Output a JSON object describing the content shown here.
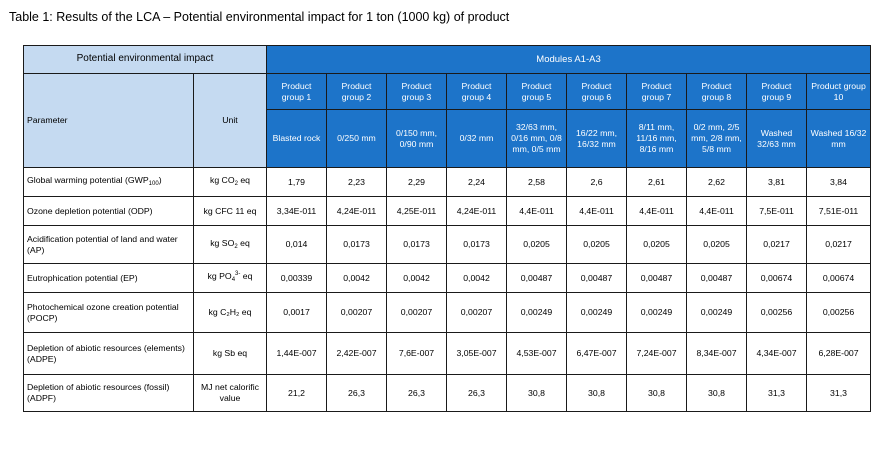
{
  "caption": "Table 1: Results of the LCA – Potential environmental impact for 1 ton (1000 kg) of product",
  "header": {
    "impact_title": "Potential environmental impact",
    "modules_title": "Modules A1-A3",
    "parameter_label": "Parameter",
    "unit_label": "Unit"
  },
  "groups": [
    {
      "name": "Product group 1",
      "size": "Blasted rock"
    },
    {
      "name": "Product group 2",
      "size": "0/250 mm"
    },
    {
      "name": "Product group 3",
      "size": "0/150 mm, 0/90 mm"
    },
    {
      "name": "Product group 4",
      "size": "0/32 mm"
    },
    {
      "name": "Product group 5",
      "size": "32/63 mm, 0/16 mm, 0/8 mm, 0/5 mm"
    },
    {
      "name": "Product group 6",
      "size": "16/22 mm, 16/32 mm"
    },
    {
      "name": "Product group 7",
      "size": "8/11 mm, 11/16 mm, 8/16 mm"
    },
    {
      "name": "Product group 8",
      "size": "0/2 mm, 2/5 mm, 2/8 mm, 5/8 mm"
    },
    {
      "name": "Product group 9",
      "size": "Washed 32/63 mm"
    },
    {
      "name": "Product group 10",
      "size": "Washed 16/32 mm"
    }
  ],
  "rows": [
    {
      "param_pre": "Global warming potential (GWP",
      "param_sub": "100",
      "param_post": ")",
      "unit_pre": "kg CO",
      "unit_sub": "2",
      "unit_sup": "",
      "unit_post": " eq",
      "values": [
        "1,79",
        "2,23",
        "2,29",
        "2,24",
        "2,58",
        "2,6",
        "2,61",
        "2,62",
        "3,81",
        "3,84"
      ]
    },
    {
      "param_pre": "Ozone depletion potential (ODP)",
      "param_sub": "",
      "param_post": "",
      "unit_pre": "kg CFC 11 eq",
      "unit_sub": "",
      "unit_sup": "",
      "unit_post": "",
      "values": [
        "3,34E-011",
        "4,24E-011",
        "4,25E-011",
        "4,24E-011",
        "4,4E-011",
        "4,4E-011",
        "4,4E-011",
        "4,4E-011",
        "7,5E-011",
        "7,51E-011"
      ]
    },
    {
      "param_pre": "Acidification potential of land and water (AP)",
      "param_sub": "",
      "param_post": "",
      "unit_pre": "kg SO",
      "unit_sub": "2",
      "unit_sup": "",
      "unit_post": " eq",
      "values": [
        "0,014",
        "0,0173",
        "0,0173",
        "0,0173",
        "0,0205",
        "0,0205",
        "0,0205",
        "0,0205",
        "0,0217",
        "0,0217"
      ]
    },
    {
      "param_pre": "Eutrophication potential (EP)",
      "param_sub": "",
      "param_post": "",
      "unit_pre": "kg PO",
      "unit_sub": "4",
      "unit_sup": "3-",
      "unit_post": " eq",
      "values": [
        "0,00339",
        "0,0042",
        "0,0042",
        "0,0042",
        "0,00487",
        "0,00487",
        "0,00487",
        "0,00487",
        "0,00674",
        "0,00674"
      ]
    },
    {
      "param_pre": "Photochemical ozone creation potential (POCP)",
      "param_sub": "",
      "param_post": "",
      "unit_pre": "kg C₂H₂ eq",
      "unit_sub": "",
      "unit_sup": "",
      "unit_post": "",
      "values": [
        "0,0017",
        "0,00207",
        "0,00207",
        "0,00207",
        "0,00249",
        "0,00249",
        "0,00249",
        "0,00249",
        "0,00256",
        "0,00256"
      ]
    },
    {
      "param_pre": "Depletion of abiotic resources (elements) (ADPE)",
      "param_sub": "",
      "param_post": "",
      "unit_pre": "kg Sb eq",
      "unit_sub": "",
      "unit_sup": "",
      "unit_post": "",
      "values": [
        "1,44E-007",
        "2,42E-007",
        "7,6E-007",
        "3,05E-007",
        "4,53E-007",
        "6,47E-007",
        "7,24E-007",
        "8,34E-007",
        "4,34E-007",
        "6,28E-007"
      ]
    },
    {
      "param_pre": "Depletion of abiotic resources (fossil) (ADPF)",
      "param_sub": "",
      "param_post": "",
      "unit_pre": "MJ net calorific value",
      "unit_sub": "",
      "unit_sup": "",
      "unit_post": "",
      "values": [
        "21,2",
        "26,3",
        "26,3",
        "26,3",
        "30,8",
        "30,8",
        "30,8",
        "30,8",
        "31,3",
        "31,3"
      ]
    }
  ]
}
